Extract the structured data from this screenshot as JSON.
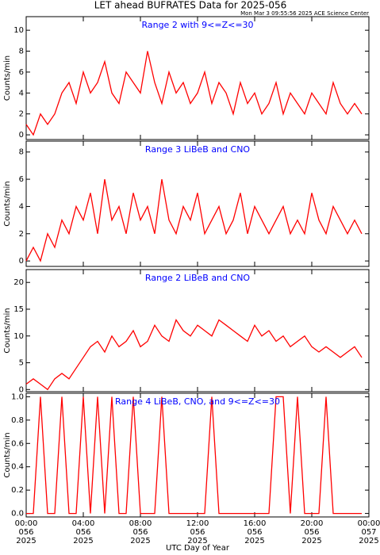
{
  "chart_data": [
    {
      "type": "line",
      "title": "LET ahead BUFRATES Data for 2025-056",
      "subtitle": "Mon Mar  3 09:55:56 2025 ACE Science Center",
      "annotation": "Range 2 with 9<=Z<=30",
      "ylabel": "Counts/min",
      "color": "#ff0000",
      "xlim": [
        0,
        24
      ],
      "ylim": [
        -0.45,
        11.3
      ],
      "yticks": [
        0,
        2,
        4,
        6,
        8,
        10
      ],
      "x": [
        0,
        0.5,
        1,
        1.5,
        2,
        2.5,
        3,
        3.5,
        4,
        4.5,
        5,
        5.5,
        6,
        6.5,
        7,
        7.5,
        8,
        8.5,
        9,
        9.5,
        10,
        10.5,
        11,
        11.5,
        12,
        12.5,
        13,
        13.5,
        14,
        14.5,
        15,
        15.5,
        16,
        16.5,
        17,
        17.5,
        18,
        18.5,
        19,
        19.5,
        20,
        20.5,
        21,
        21.5,
        22,
        22.5,
        23,
        23.5
      ],
      "values": [
        1,
        0,
        2,
        1,
        2,
        4,
        5,
        3,
        6,
        4,
        5,
        7,
        4,
        3,
        6,
        5,
        4,
        8,
        5,
        3,
        6,
        4,
        5,
        3,
        4,
        6,
        3,
        5,
        4,
        2,
        5,
        3,
        4,
        2,
        3,
        5,
        2,
        4,
        3,
        2,
        4,
        3,
        2,
        5,
        3,
        2,
        3,
        2
      ]
    },
    {
      "type": "line",
      "annotation": "Range 3 LiBeB and CNO",
      "ylabel": "Counts/min",
      "color": "#ff0000",
      "xlim": [
        0,
        24
      ],
      "ylim": [
        -0.4,
        8.8
      ],
      "yticks": [
        0,
        2,
        4,
        6,
        8
      ],
      "x": [
        0,
        0.5,
        1,
        1.5,
        2,
        2.5,
        3,
        3.5,
        4,
        4.5,
        5,
        5.5,
        6,
        6.5,
        7,
        7.5,
        8,
        8.5,
        9,
        9.5,
        10,
        10.5,
        11,
        11.5,
        12,
        12.5,
        13,
        13.5,
        14,
        14.5,
        15,
        15.5,
        16,
        16.5,
        17,
        17.5,
        18,
        18.5,
        19,
        19.5,
        20,
        20.5,
        21,
        21.5,
        22,
        22.5,
        23,
        23.5
      ],
      "values": [
        0,
        1,
        0,
        2,
        1,
        3,
        2,
        4,
        3,
        5,
        2,
        6,
        3,
        4,
        2,
        5,
        3,
        4,
        2,
        6,
        3,
        2,
        4,
        3,
        5,
        2,
        3,
        4,
        2,
        3,
        5,
        2,
        4,
        3,
        2,
        3,
        4,
        2,
        3,
        2,
        5,
        3,
        2,
        4,
        3,
        2,
        3,
        2
      ]
    },
    {
      "type": "line",
      "annotation": "Range 2 LiBeB and CNO",
      "ylabel": "Counts/min",
      "color": "#ff0000",
      "xlim": [
        0,
        24
      ],
      "ylim": [
        -0.4,
        22.4
      ],
      "yticks": [
        0,
        5,
        10,
        15,
        20
      ],
      "x": [
        0,
        0.5,
        1,
        1.5,
        2,
        2.5,
        3,
        3.5,
        4,
        4.5,
        5,
        5.5,
        6,
        6.5,
        7,
        7.5,
        8,
        8.5,
        9,
        9.5,
        10,
        10.5,
        11,
        11.5,
        12,
        12.5,
        13,
        13.5,
        14,
        14.5,
        15,
        15.5,
        16,
        16.5,
        17,
        17.5,
        18,
        18.5,
        19,
        19.5,
        20,
        20.5,
        21,
        21.5,
        22,
        22.5,
        23,
        23.5
      ],
      "values": [
        1,
        2,
        1,
        0,
        2,
        3,
        2,
        4,
        6,
        8,
        9,
        7,
        10,
        8,
        9,
        11,
        8,
        9,
        12,
        10,
        9,
        13,
        11,
        10,
        12,
        11,
        10,
        13,
        12,
        11,
        10,
        9,
        12,
        10,
        11,
        9,
        10,
        8,
        9,
        10,
        8,
        7,
        8,
        7,
        6,
        7,
        8,
        6
      ]
    },
    {
      "type": "line",
      "annotation": "Range 4 LiBeB, CNO, and 9<=Z<=30",
      "ylabel": "Counts/min",
      "xlabel": "UTC Day of Year",
      "color": "#ff0000",
      "xlim": [
        0,
        24
      ],
      "ylim": [
        -0.03,
        1.03
      ],
      "yticks": [
        {
          "value": 0,
          "label": "0.0"
        },
        {
          "value": 0.2,
          "label": "0.2"
        },
        {
          "value": 0.4,
          "label": "0.4"
        },
        {
          "value": 0.6,
          "label": "0.6"
        },
        {
          "value": 0.8,
          "label": "0.8"
        },
        {
          "value": 1,
          "label": "1.0"
        }
      ],
      "xticks": [
        {
          "value": 0,
          "label": "00:00",
          "day": "056",
          "year": "2025"
        },
        {
          "value": 4,
          "label": "04:00",
          "day": "056",
          "year": "2025"
        },
        {
          "value": 8,
          "label": "08:00",
          "day": "056",
          "year": "2025"
        },
        {
          "value": 12,
          "label": "12:00",
          "day": "056",
          "year": "2025"
        },
        {
          "value": 16,
          "label": "16:00",
          "day": "056",
          "year": "2025"
        },
        {
          "value": 20,
          "label": "20:00",
          "day": "056",
          "year": "2025"
        },
        {
          "value": 24,
          "label": "00:00",
          "day": "057",
          "year": "2025"
        }
      ],
      "x": [
        0,
        0.5,
        1,
        1.5,
        2,
        2.5,
        3,
        3.5,
        4,
        4.5,
        5,
        5.5,
        6,
        6.5,
        7,
        7.5,
        8,
        8.5,
        9,
        9.5,
        10,
        10.5,
        11,
        11.5,
        12,
        12.5,
        13,
        13.5,
        14,
        14.5,
        15,
        15.5,
        16,
        16.5,
        17,
        17.5,
        18,
        18.5,
        19,
        19.5,
        20,
        20.5,
        21,
        21.5,
        22,
        22.5,
        23,
        23.5
      ],
      "values": [
        0,
        0,
        1,
        0,
        0,
        1,
        0,
        0,
        1,
        0,
        1,
        0,
        1,
        0,
        0,
        1,
        0,
        0,
        0,
        1,
        0,
        0,
        0,
        0,
        0,
        0,
        1,
        0,
        0,
        0,
        0,
        0,
        0,
        0,
        0,
        1,
        1,
        0,
        1,
        0,
        0,
        0,
        1,
        0,
        0,
        0,
        0,
        0
      ]
    }
  ]
}
